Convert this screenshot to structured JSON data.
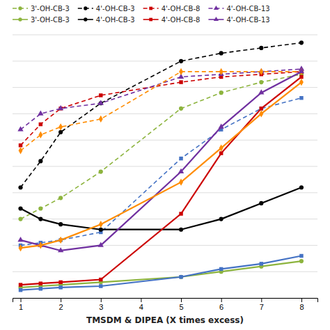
{
  "chart_data": {
    "type": "line",
    "xlabel": "TMSDM & DIPEA (X times excess)",
    "x": [
      1,
      1.5,
      2,
      3,
      5,
      6,
      7,
      8
    ],
    "series": [
      {
        "name": "3'-OH-CB-3",
        "color": "#8db43e",
        "marker": "circle",
        "line_style": "dashed",
        "values": [
          30,
          34,
          38,
          48,
          72,
          78,
          82,
          85
        ]
      },
      {
        "name": "4'-OH-CB-3",
        "color": "#000000",
        "marker": "circle",
        "line_style": "dashed",
        "values": [
          42,
          52,
          63,
          74,
          90,
          93,
          95,
          97
        ]
      },
      {
        "name": "4'-OH-CB-8",
        "color": "#cc0000",
        "marker": "square",
        "line_style": "dashed",
        "values": [
          58,
          66,
          72,
          77,
          82,
          84,
          85,
          86
        ]
      },
      {
        "name": "4'-OH-CB-13",
        "color": "#7030a0",
        "marker": "triangle",
        "line_style": "dashed",
        "values": [
          64,
          70,
          72,
          74,
          84,
          85,
          86,
          87
        ]
      },
      {
        "color": "#ff8c00",
        "marker": "diamond",
        "line_style": "dashed",
        "values": [
          56,
          62,
          65,
          68,
          86,
          86,
          86,
          86
        ]
      },
      {
        "color": "#4472c4",
        "marker": "square",
        "line_style": "dashed",
        "values": [
          20,
          21,
          22,
          25,
          53,
          64,
          72,
          76
        ]
      },
      {
        "name": "3'-OH-CB-3",
        "color": "#8db43e",
        "marker": "circle",
        "line_style": "solid",
        "values": [
          4,
          4.5,
          5,
          6,
          8,
          10,
          12,
          14
        ]
      },
      {
        "name": "4'-OH-CB-3",
        "color": "#000000",
        "marker": "circle",
        "line_style": "solid",
        "values": [
          34,
          30,
          28,
          26,
          26,
          30,
          36,
          42
        ]
      },
      {
        "name": "4'-OH-CB-8",
        "color": "#cc0000",
        "marker": "square",
        "line_style": "solid",
        "values": [
          5,
          5.5,
          6,
          7,
          32,
          55,
          72,
          84
        ]
      },
      {
        "name": "4'-OH-CB-13",
        "color": "#7030a0",
        "marker": "triangle",
        "line_style": "solid",
        "values": [
          22,
          20,
          18,
          20,
          48,
          65,
          78,
          86
        ]
      },
      {
        "color": "#ff8c00",
        "marker": "diamond",
        "line_style": "solid",
        "values": [
          19,
          20,
          22,
          28,
          44,
          57,
          70,
          82
        ]
      },
      {
        "color": "#4472c4",
        "marker": "square",
        "line_style": "solid",
        "values": [
          3,
          3.5,
          4,
          4.5,
          8,
          11,
          13,
          16
        ]
      }
    ],
    "xlim": [
      0.8,
      8.4
    ],
    "xticks": [
      1,
      2,
      3,
      4,
      5,
      6,
      7,
      8
    ],
    "ylim": [
      0,
      100
    ],
    "yticks": [
      0,
      10,
      20,
      30,
      40,
      50,
      60,
      70,
      80,
      90,
      100
    ],
    "grid": true,
    "tick_labels": "x",
    "legend": "top"
  }
}
